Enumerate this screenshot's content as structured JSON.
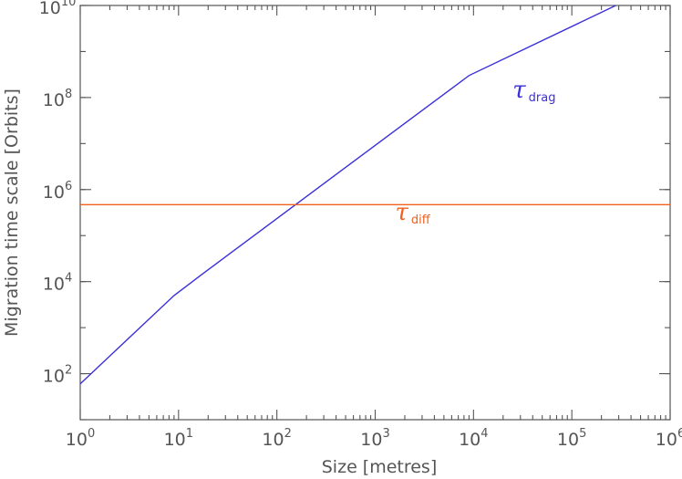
{
  "chart_data": {
    "type": "line",
    "xlabel": "Size [metres]",
    "ylabel": "Migration time scale [Orbits]",
    "xscale": "log",
    "yscale": "log",
    "xlim": [
      1,
      1000000
    ],
    "ylim": [
      10,
      10000000000
    ],
    "grid": false,
    "x_ticks": [
      {
        "base": "10",
        "exp": "0",
        "value": 1
      },
      {
        "base": "10",
        "exp": "1",
        "value": 10
      },
      {
        "base": "10",
        "exp": "2",
        "value": 100
      },
      {
        "base": "10",
        "exp": "3",
        "value": 1000
      },
      {
        "base": "10",
        "exp": "4",
        "value": 10000
      },
      {
        "base": "10",
        "exp": "5",
        "value": 100000
      },
      {
        "base": "10",
        "exp": "6",
        "value": 1000000
      }
    ],
    "y_ticks": [
      {
        "base": "10",
        "exp": "2",
        "value": 100
      },
      {
        "base": "10",
        "exp": "4",
        "value": 10000
      },
      {
        "base": "10",
        "exp": "6",
        "value": 1000000
      },
      {
        "base": "10",
        "exp": "8",
        "value": 100000000
      },
      {
        "base": "10",
        "exp": "10",
        "value": 10000000000
      }
    ],
    "series": [
      {
        "label_symbol": "τ",
        "label_sub": "drag",
        "color": "#3b2fd9",
        "x": [
          1,
          9,
          17,
          9000,
          280000
        ],
        "y": [
          60,
          5000,
          14000,
          300000000,
          10000000000
        ],
        "label_at": [
          25000,
          100000000
        ]
      },
      {
        "label_symbol": "τ",
        "label_sub": "diff",
        "color": "#f0601e",
        "x": [
          1,
          1000000
        ],
        "y": [
          470000,
          470000
        ],
        "label_at": [
          1600,
          220000
        ]
      }
    ]
  }
}
